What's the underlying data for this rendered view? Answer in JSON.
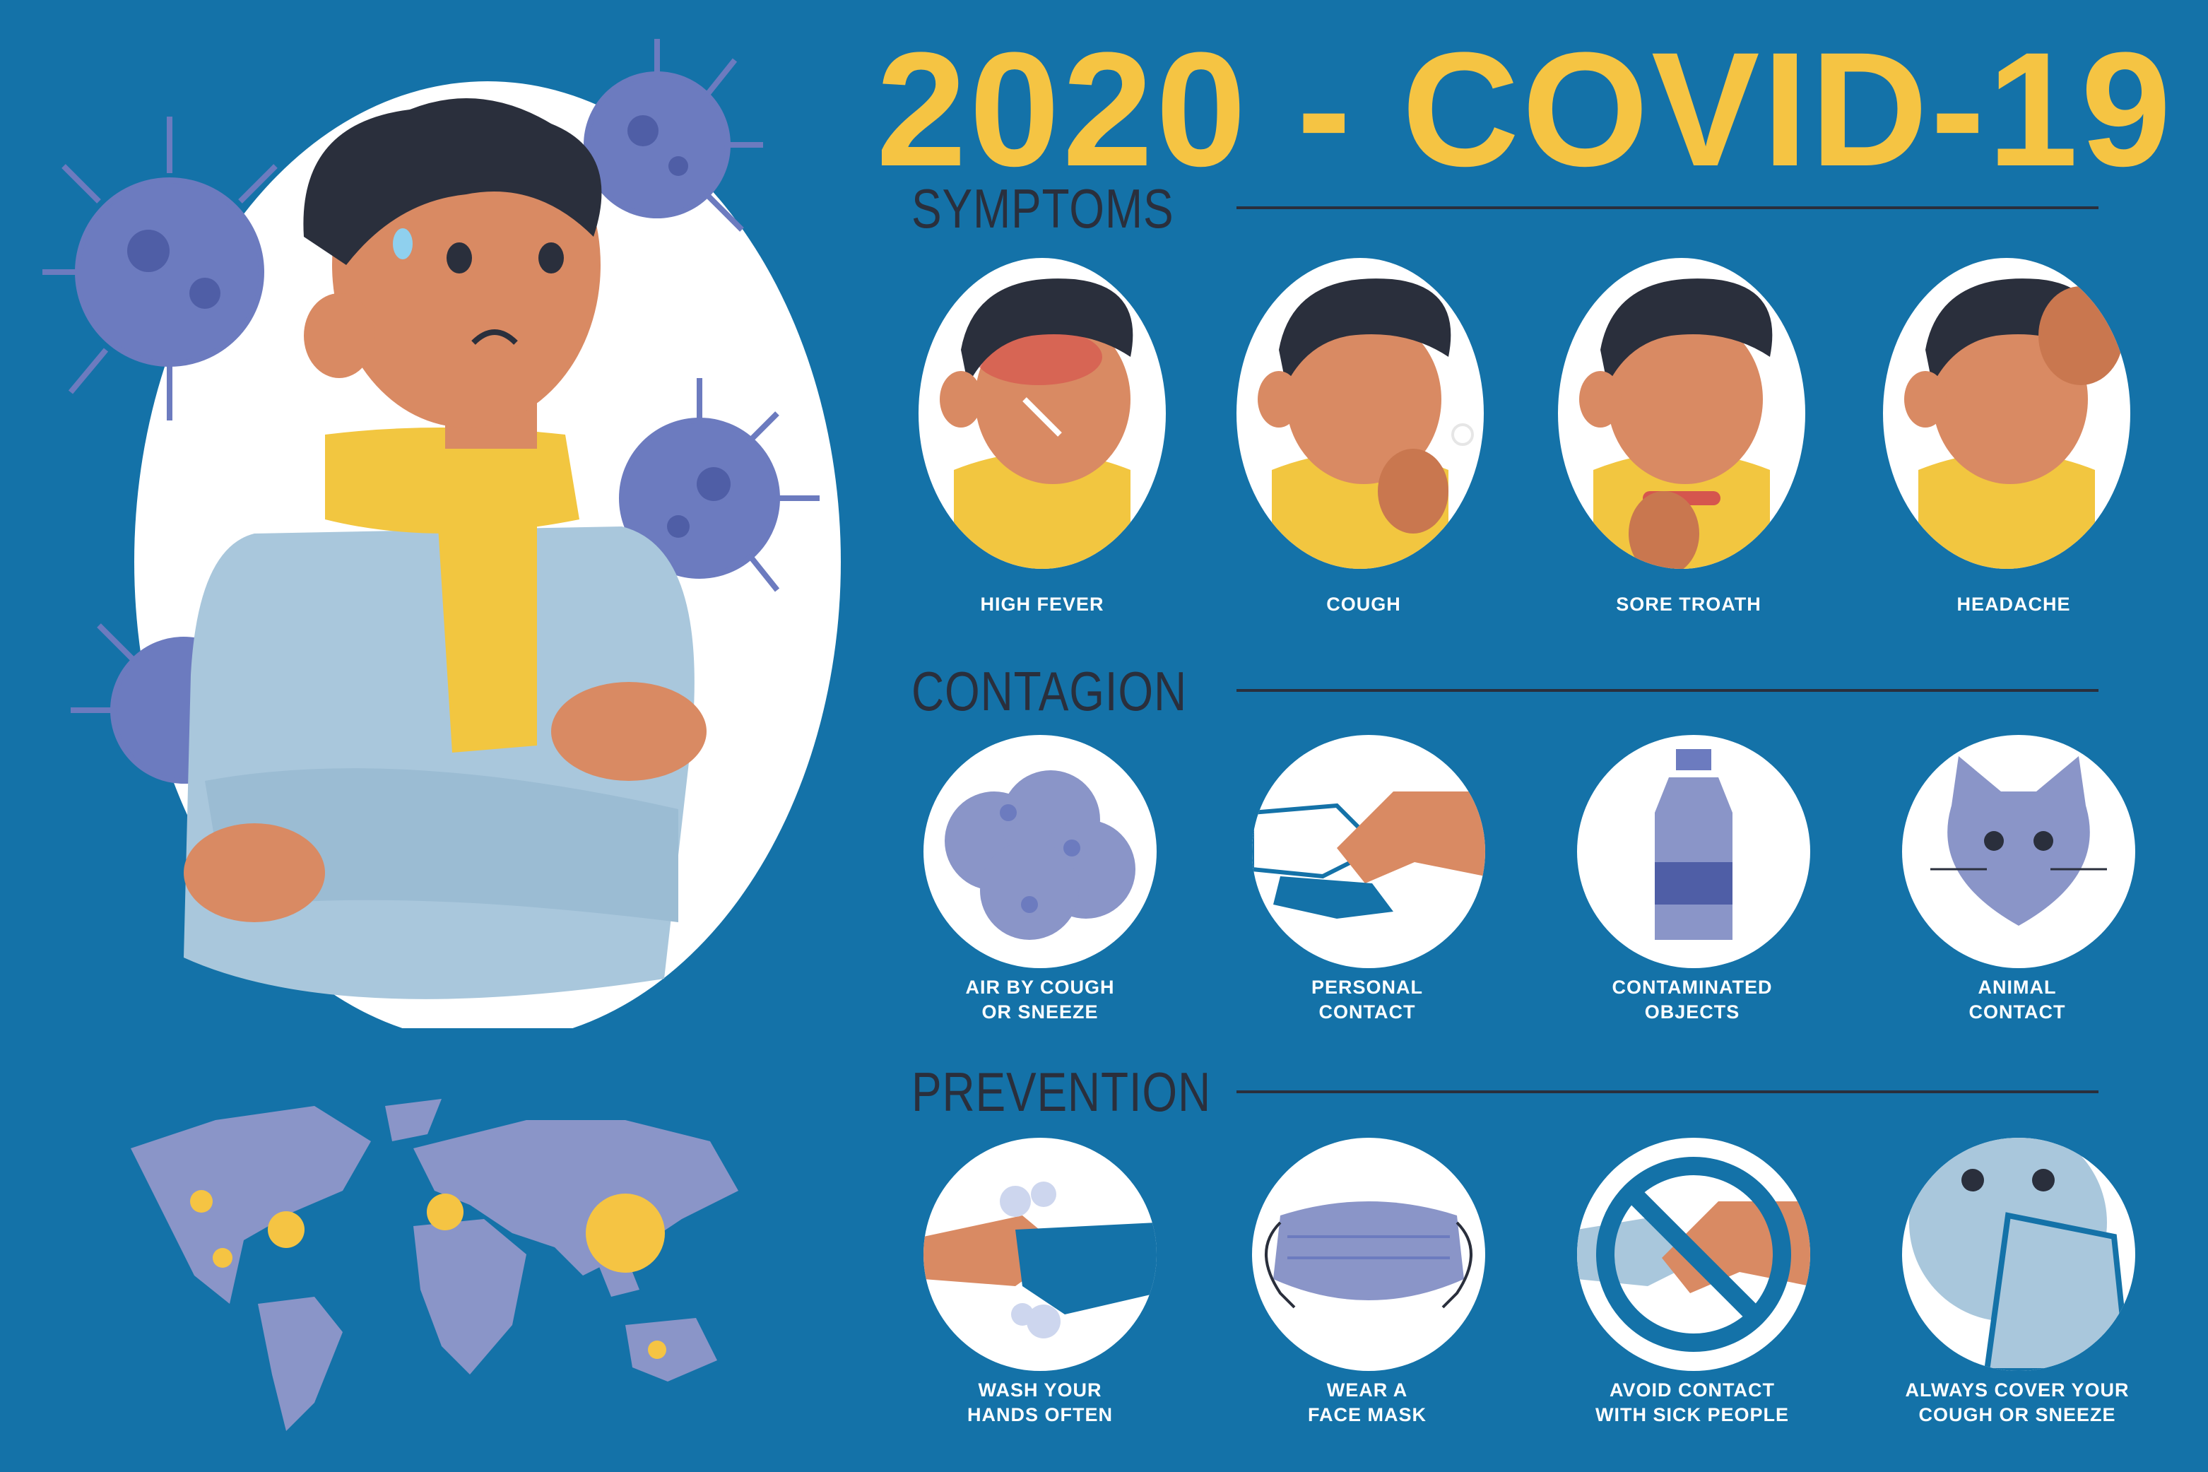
{
  "title": "2020 - COVID-19",
  "colors": {
    "background": "#1472a8",
    "title": "#f5c443",
    "heading": "#2a2f3c",
    "label": "#ffffff",
    "virus": "#6c7bbf",
    "accent": "#f5c443"
  },
  "sections": {
    "symptoms": {
      "heading": "SYMPTOMS",
      "items": [
        {
          "label": "HIGH FEVER",
          "icon": "fever-icon"
        },
        {
          "label": "COUGH",
          "icon": "cough-icon"
        },
        {
          "label": "SORE TROATH",
          "icon": "sore-throat-icon"
        },
        {
          "label": "HEADACHE",
          "icon": "headache-icon"
        }
      ]
    },
    "contagion": {
      "heading": "CONTAGION",
      "items": [
        {
          "line1": "AIR BY COUGH",
          "line2": "OR SNEEZE",
          "icon": "air-cloud-icon"
        },
        {
          "line1": "PERSONAL",
          "line2": "CONTACT",
          "icon": "handshake-icon"
        },
        {
          "line1": "CONTAMINATED",
          "line2": "OBJECTS",
          "icon": "bottle-icon"
        },
        {
          "line1": "ANIMAL",
          "line2": "CONTACT",
          "icon": "cat-icon"
        }
      ]
    },
    "prevention": {
      "heading": "PREVENTION",
      "items": [
        {
          "line1": "WASH YOUR",
          "line2": "HANDS OFTEN",
          "icon": "wash-hands-icon"
        },
        {
          "line1": "WEAR A",
          "line2": "FACE MASK",
          "icon": "face-mask-icon"
        },
        {
          "line1": "AVOID CONTACT",
          "line2": "WITH SICK PEOPLE",
          "icon": "no-handshake-icon"
        },
        {
          "line1": "ALWAYS COVER YOUR",
          "line2": "COUGH OR SNEEZE",
          "icon": "cover-sneeze-icon"
        }
      ]
    }
  }
}
